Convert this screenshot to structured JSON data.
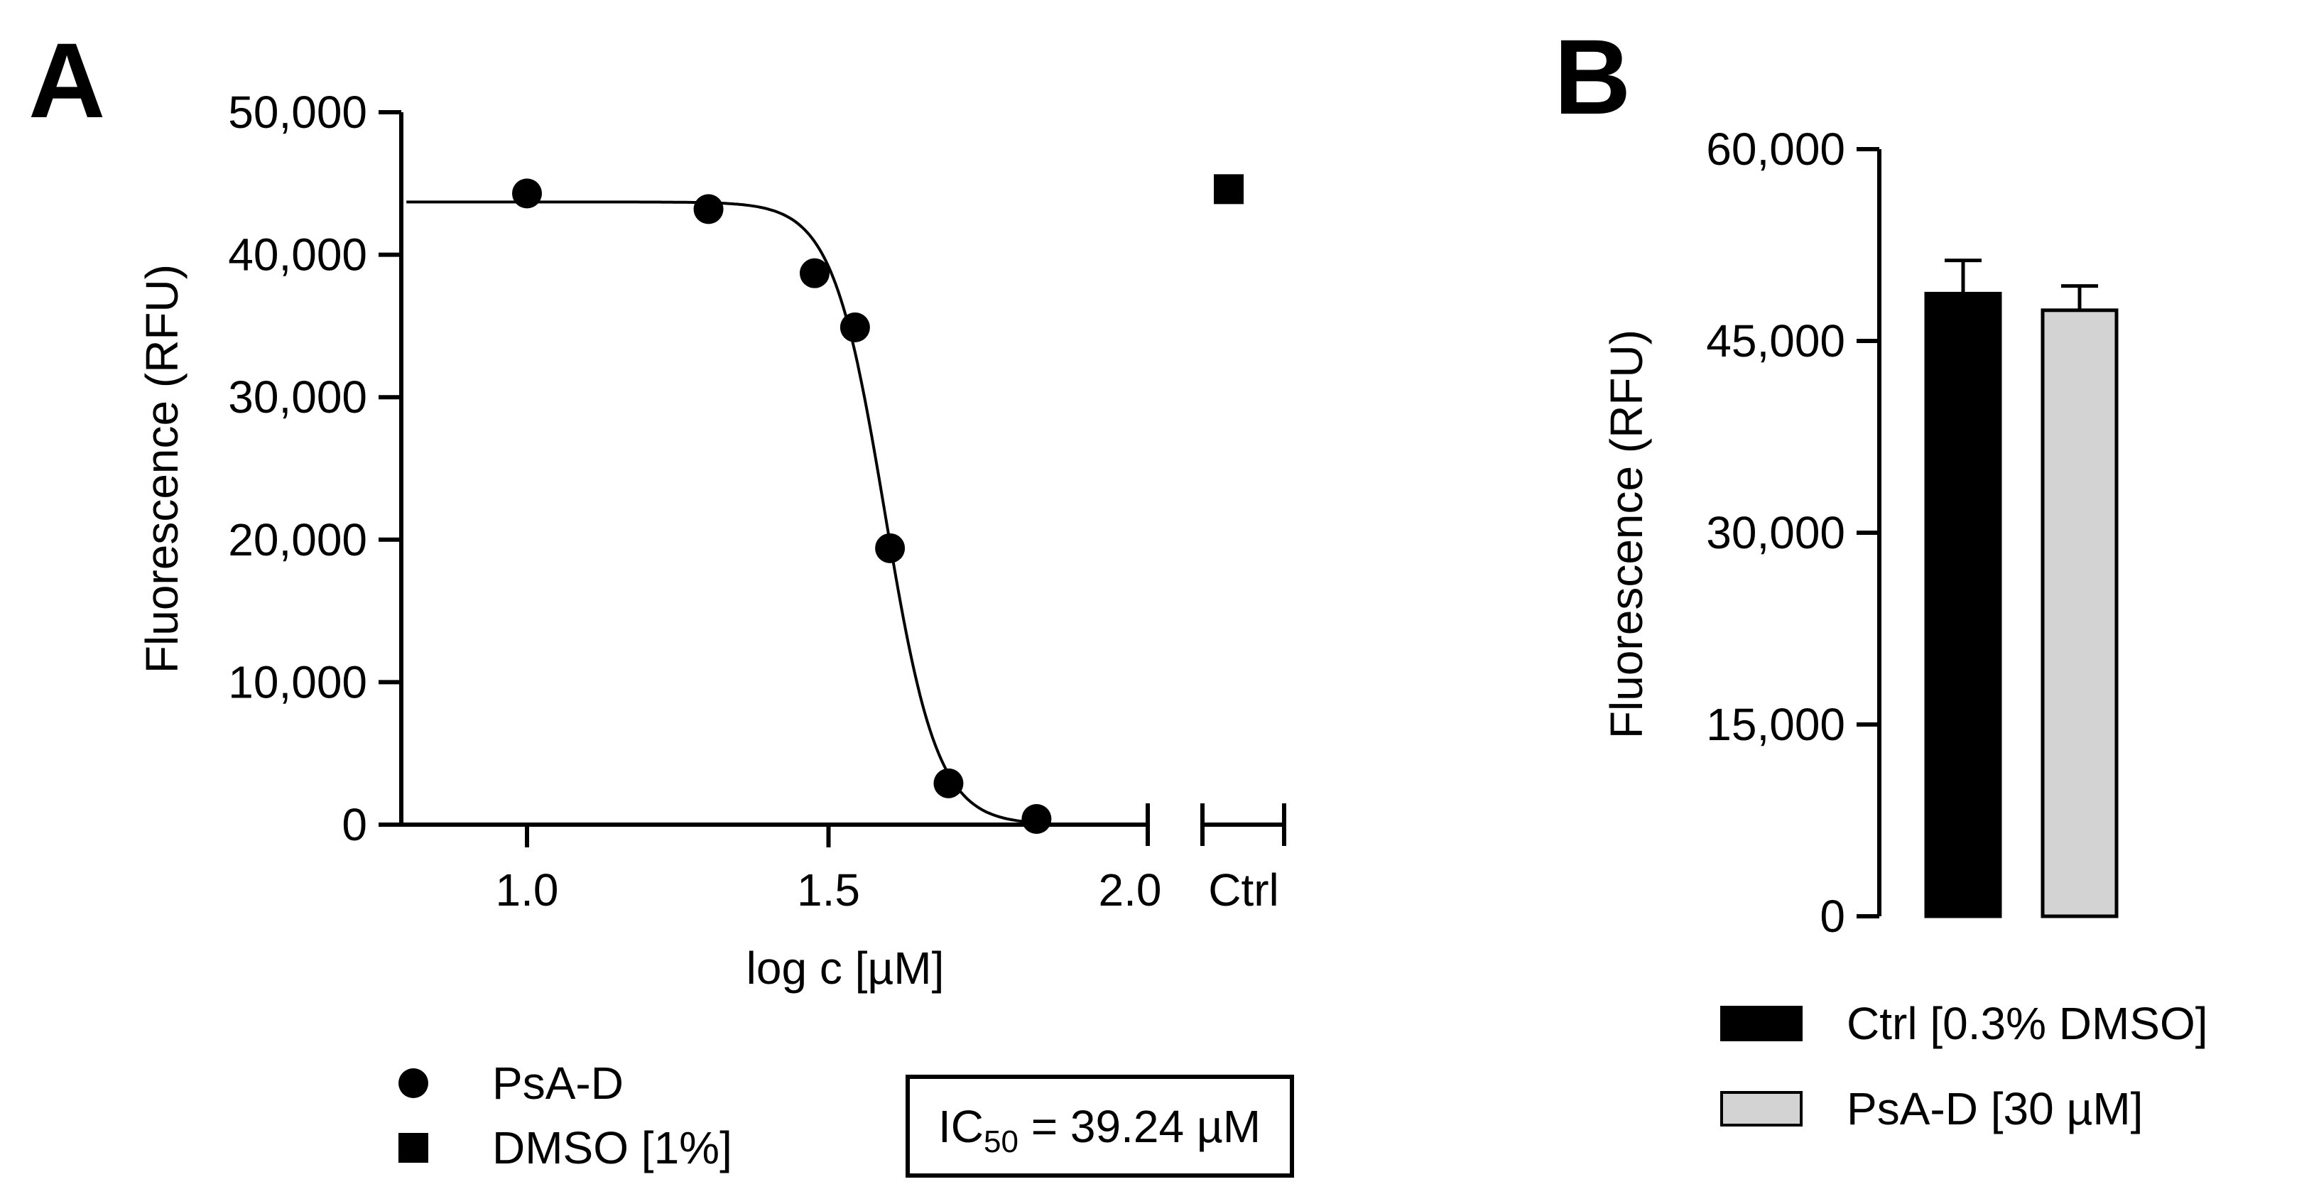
{
  "panels": {
    "a": {
      "letter": "A",
      "chart_data": {
        "type": "scatter",
        "title": "",
        "xlabel": "log c [µM]",
        "ylabel": "Fluorescence (RFU)",
        "xlim": [
          0.8,
          2.0
        ],
        "ylim": [
          0,
          50000
        ],
        "x_ticks": [
          1.0,
          1.5,
          2.0
        ],
        "x_tick_labels": [
          "1.0",
          "1.5",
          "2.0"
        ],
        "y_ticks": [
          0,
          10000,
          20000,
          30000,
          40000,
          50000
        ],
        "y_tick_labels": [
          "0",
          "10,000",
          "20,000",
          "30,000",
          "40,000",
          "50,000"
        ],
        "ctrl_tick_label": "Ctrl",
        "series": [
          {
            "name": "PsA-D",
            "marker": "circle",
            "x": [
              1.0,
              1.301,
              1.477,
              1.544,
              1.602,
              1.699,
              1.845
            ],
            "y": [
              44300,
              43200,
              38700,
              34900,
              19400,
              2900,
              400
            ]
          },
          {
            "name": "DMSO [1%]",
            "marker": "square",
            "x": [
              "Ctrl"
            ],
            "y": [
              44600
            ]
          }
        ],
        "fit": {
          "model": "four-parameter logistic",
          "top": 43700,
          "bottom": 0,
          "log_ic50": 1.5937,
          "hill_slope": -10
        },
        "annotation": {
          "prefix": "IC",
          "subscript": "50",
          "suffix": " = 39.24 µM"
        }
      }
    },
    "b": {
      "letter": "B",
      "chart_data": {
        "type": "bar",
        "title": "",
        "xlabel": "",
        "ylabel": "Fluorescence (RFU)",
        "ylim": [
          0,
          60000
        ],
        "y_ticks": [
          0,
          15000,
          30000,
          45000,
          60000
        ],
        "y_tick_labels": [
          "0",
          "15,000",
          "30,000",
          "45,000",
          "60,000"
        ],
        "categories": [
          "Ctrl [0.3% DMSO]",
          "PsA-D [30 µM]"
        ],
        "values": [
          48700,
          47400
        ],
        "errors": [
          2600,
          1900
        ],
        "colors": [
          "#000000",
          "#d3d3d3"
        ],
        "legend_position": "bottom"
      }
    }
  }
}
